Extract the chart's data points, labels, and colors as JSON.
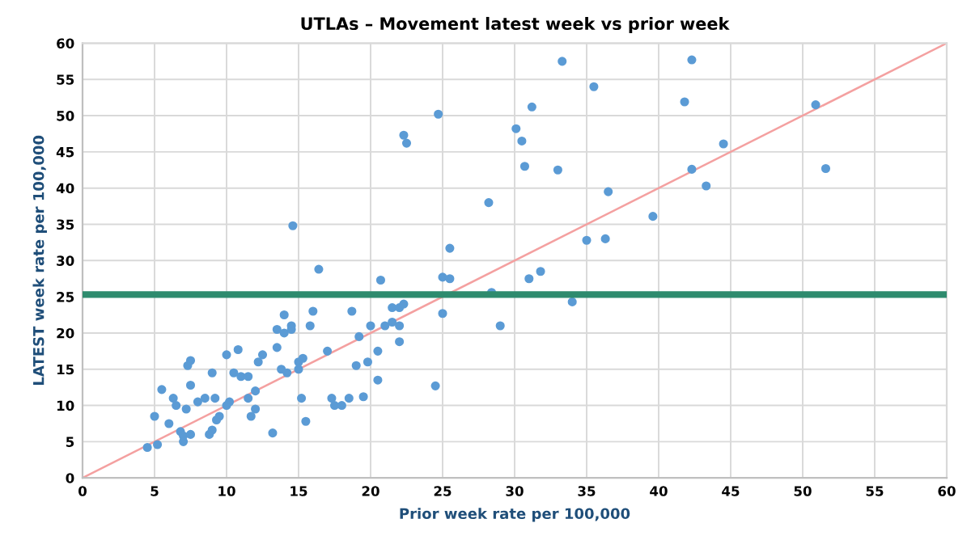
{
  "chart_data": {
    "type": "scatter",
    "title": "UTLAs – Movement latest week vs prior week",
    "xlabel": "Prior week rate per 100,000",
    "ylabel": "LATEST week rate per 100,000",
    "xlim": [
      0,
      60
    ],
    "ylim": [
      0,
      60
    ],
    "xticks": [
      0,
      5,
      10,
      15,
      20,
      25,
      30,
      35,
      40,
      45,
      50,
      55,
      60
    ],
    "yticks": [
      0,
      5,
      10,
      15,
      20,
      25,
      30,
      35,
      40,
      45,
      50,
      55,
      60
    ],
    "grid": true,
    "series": [
      {
        "marker": "circle",
        "color": "#5b9bd5",
        "x": [
          4.5,
          5,
          5.2,
          5.5,
          6,
          6.3,
          6.5,
          6.8,
          7,
          7,
          7.2,
          7.3,
          7.5,
          7.5,
          7.5,
          8,
          8.5,
          8.8,
          9,
          9,
          9.2,
          9.3,
          9.5,
          10,
          10,
          10.2,
          10.5,
          10.8,
          11,
          11.5,
          11.5,
          11.7,
          12,
          12,
          12.2,
          12.5,
          13.2,
          13.5,
          13.5,
          13.8,
          14,
          14.2,
          14,
          14.5,
          14.5,
          15,
          15,
          15.2,
          15.3,
          15.5,
          15.8,
          16,
          14.6,
          16.4,
          17,
          17.3,
          17.5,
          18,
          18.5,
          18.7,
          19,
          19.2,
          19.5,
          19.8,
          20,
          20.5,
          20.5,
          20.7,
          21,
          21.5,
          21.5,
          22,
          22,
          22,
          22.3,
          22.3,
          22.5,
          24.5,
          24.7,
          25,
          25,
          25.5,
          25.5,
          28.2,
          28.4,
          29,
          30.1,
          30.5,
          30.7,
          31,
          31.2,
          31.8,
          33,
          33.3,
          34,
          35,
          35.5,
          36.3,
          36.5,
          39.6,
          41.8,
          42.3,
          42.3,
          43.3,
          44.5,
          50.9,
          51.6
        ],
        "values": [
          4.2,
          8.5,
          4.6,
          12.2,
          7.5,
          11,
          10,
          6.4,
          5.8,
          5,
          9.5,
          15.5,
          16.2,
          12.8,
          6,
          10.5,
          11,
          6,
          6.6,
          14.5,
          11,
          8,
          8.5,
          17,
          10,
          10.5,
          14.5,
          17.7,
          14,
          11,
          14,
          8.5,
          9.5,
          12,
          16,
          17,
          6.2,
          20.5,
          18,
          15,
          22.5,
          14.5,
          20,
          20.5,
          21,
          15,
          16,
          11,
          16.5,
          7.8,
          21,
          23,
          34.8,
          28.8,
          17.5,
          11,
          10,
          10,
          11,
          23,
          15.5,
          19.5,
          11.2,
          16,
          21,
          13.5,
          17.5,
          27.3,
          21,
          23.5,
          21.5,
          23.5,
          21,
          18.8,
          24,
          47.3,
          46.2,
          12.7,
          50.2,
          22.7,
          27.7,
          31.7,
          27.5,
          38,
          25.6,
          21,
          48.2,
          46.5,
          43,
          27.5,
          51.2,
          28.5,
          42.5,
          57.5,
          24.3,
          32.8,
          54,
          33,
          39.5,
          36.1,
          51.9,
          57.7,
          42.6,
          40.3,
          46.1,
          51.5,
          42.7
        ]
      },
      {
        "type": "line",
        "color": "#f4a0a0",
        "x": [
          0,
          60
        ],
        "values": [
          0,
          60
        ]
      }
    ],
    "ref_lines": [
      {
        "axis": "y",
        "value": 25.3,
        "color": "#2e8b6e"
      }
    ]
  }
}
